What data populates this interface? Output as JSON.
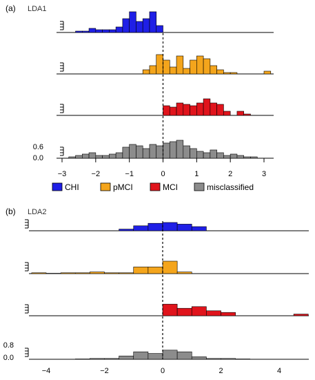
{
  "colors": {
    "CHI": "#1f1fe6",
    "pMCI": "#f4a51c",
    "MCI": "#e0141c",
    "misclassified": "#8c8c8c",
    "edge": "#000000"
  },
  "legend": {
    "position": "between-panels",
    "items": [
      {
        "label": "CHI",
        "color": "#1f1fe6"
      },
      {
        "label": "pMCI",
        "color": "#f4a51c"
      },
      {
        "label": "MCI",
        "color": "#e0141c"
      },
      {
        "label": "misclassified",
        "color": "#8c8c8c"
      }
    ]
  },
  "chart_data": [
    {
      "type": "bar",
      "panel_label": "(a)",
      "title": "LDA1",
      "xlim": [
        -3,
        3.2
      ],
      "xticks": [
        -3,
        -2,
        -1,
        0,
        1,
        2,
        3
      ],
      "xticklabels": [
        "−3",
        "−2",
        "−1",
        "0",
        "1",
        "2",
        "3"
      ],
      "bin_width": 0.2,
      "threshold_x": 0,
      "ylabel_ticks": [
        "0.6",
        "0.0"
      ],
      "series": [
        {
          "name": "CHI",
          "bin_starts": [
            -2.6,
            -2.4,
            -2.2,
            -2.0,
            -1.8,
            -1.6,
            -1.4,
            -1.2,
            -1.0,
            -0.8,
            -0.6,
            -0.4,
            -0.2
          ],
          "values": [
            0.05,
            0.05,
            0.15,
            0.1,
            0.1,
            0.1,
            0.2,
            0.5,
            0.75,
            0.4,
            0.5,
            0.75,
            0.25
          ]
        },
        {
          "name": "pMCI",
          "bin_starts": [
            -0.6,
            -0.4,
            -0.2,
            0.0,
            0.2,
            0.4,
            0.6,
            0.8,
            1.0,
            1.2,
            1.4,
            1.6,
            1.8,
            2.0,
            3.0
          ],
          "values": [
            0.15,
            0.3,
            0.7,
            0.5,
            0.25,
            0.65,
            0.2,
            0.5,
            0.65,
            0.55,
            0.3,
            0.15,
            0.05,
            0.05,
            0.1
          ]
        },
        {
          "name": "MCI",
          "bin_starts": [
            0.0,
            0.2,
            0.4,
            0.6,
            0.8,
            1.0,
            1.2,
            1.4,
            1.6,
            1.8,
            2.0,
            2.2,
            2.4
          ],
          "values": [
            0.35,
            0.3,
            0.45,
            0.4,
            0.35,
            0.45,
            0.6,
            0.45,
            0.4,
            0.15,
            0.0,
            0.15,
            0.05
          ]
        },
        {
          "name": "misclassified",
          "bin_starts": [
            -2.8,
            -2.6,
            -2.4,
            -2.2,
            -2.0,
            -1.8,
            -1.6,
            -1.4,
            -1.2,
            -1.0,
            -0.8,
            -0.6,
            -0.4,
            -0.2,
            0.0,
            0.2,
            0.4,
            0.6,
            0.8,
            1.0,
            1.2,
            1.4,
            1.6,
            1.8,
            2.0,
            2.2,
            2.4,
            2.6
          ],
          "values": [
            0.05,
            0.1,
            0.15,
            0.2,
            0.1,
            0.1,
            0.15,
            0.2,
            0.4,
            0.5,
            0.45,
            0.35,
            0.5,
            0.45,
            0.55,
            0.6,
            0.65,
            0.45,
            0.35,
            0.25,
            0.2,
            0.3,
            0.2,
            0.1,
            0.15,
            0.1,
            0.05,
            0.05
          ]
        }
      ]
    },
    {
      "type": "bar",
      "panel_label": "(b)",
      "title": "LDA2",
      "xlim": [
        -4.4,
        5
      ],
      "xticks": [
        -4,
        -2,
        0,
        2,
        4
      ],
      "xticklabels": [
        "−4",
        "−2",
        "0",
        "2",
        "4"
      ],
      "bin_width": 0.5,
      "threshold_x": 0,
      "ylabel_ticks": [
        "0.8",
        "0.0"
      ],
      "series": [
        {
          "name": "CHI",
          "bin_starts": [
            -1.5,
            -1.0,
            -0.5,
            0.0,
            0.5,
            1.0
          ],
          "values": [
            0.1,
            0.3,
            0.45,
            0.5,
            0.4,
            0.25
          ]
        },
        {
          "name": "pMCI",
          "bin_starts": [
            -4.5,
            -4.0,
            -3.5,
            -3.0,
            -2.5,
            -2.0,
            -1.5,
            -1.0,
            -0.5,
            0.0,
            0.5
          ],
          "values": [
            0.05,
            0.02,
            0.05,
            0.05,
            0.1,
            0.05,
            0.05,
            0.4,
            0.4,
            0.75,
            0.1
          ]
        },
        {
          "name": "MCI",
          "bin_starts": [
            0.0,
            0.5,
            1.0,
            1.5,
            2.0,
            4.5
          ],
          "values": [
            0.7,
            0.45,
            0.55,
            0.3,
            0.2,
            0.1
          ]
        },
        {
          "name": "misclassified",
          "bin_starts": [
            -3.0,
            -2.5,
            -2.0,
            -1.5,
            -1.0,
            -0.5,
            0.0,
            0.5,
            1.0,
            1.5,
            2.0,
            2.5
          ],
          "values": [
            0.02,
            0.05,
            0.05,
            0.2,
            0.45,
            0.35,
            0.55,
            0.45,
            0.15,
            0.05,
            0.05,
            0.02
          ]
        }
      ]
    }
  ]
}
